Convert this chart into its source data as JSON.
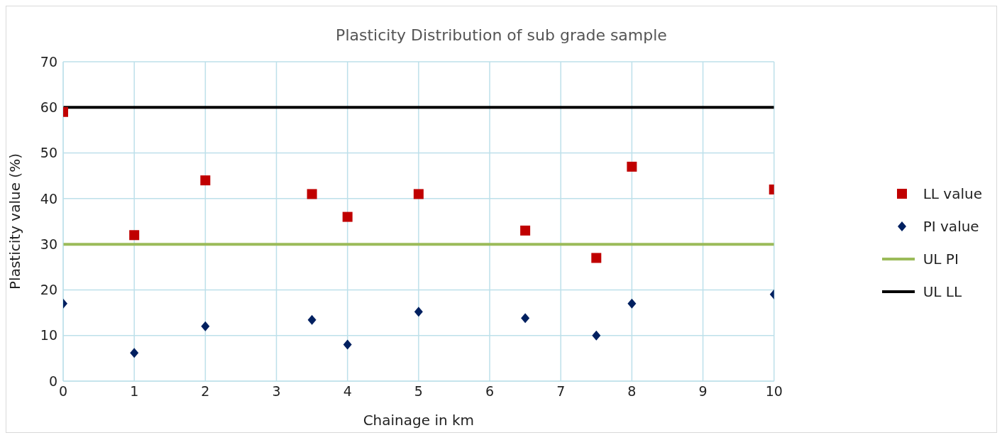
{
  "chart_data": {
    "type": "scatter",
    "title": "Plasticity Distribution of sub grade sample",
    "xlabel": "Chainage in km",
    "ylabel": "Plasticity value (%)",
    "x": [
      0,
      1,
      2,
      3.5,
      4,
      5,
      6.5,
      7.5,
      8,
      10
    ],
    "series": [
      {
        "name": "LL value",
        "color": "#c00000",
        "marker": "square",
        "values": [
          59,
          32,
          44,
          41,
          36,
          41,
          33,
          27,
          47,
          42
        ]
      },
      {
        "name": "PI value",
        "color": "#002060",
        "marker": "diamond",
        "values": [
          17,
          6.2,
          12,
          13.4,
          8,
          15.2,
          13.8,
          10,
          17,
          19
        ]
      }
    ],
    "ref_lines": [
      {
        "axis": "y",
        "value": 30,
        "label": "UL PI",
        "color": "#9bbb59"
      },
      {
        "axis": "y",
        "value": 60,
        "label": "UL LL",
        "color": "#000000"
      }
    ],
    "xlim": [
      0,
      10
    ],
    "xticks": [
      0,
      1,
      2,
      3,
      4,
      5,
      6,
      7,
      8,
      9,
      10
    ],
    "ylim": [
      0,
      70
    ],
    "yticks": [
      0,
      10,
      20,
      30,
      40,
      50,
      60,
      70
    ],
    "grid": true,
    "legend": "right"
  }
}
